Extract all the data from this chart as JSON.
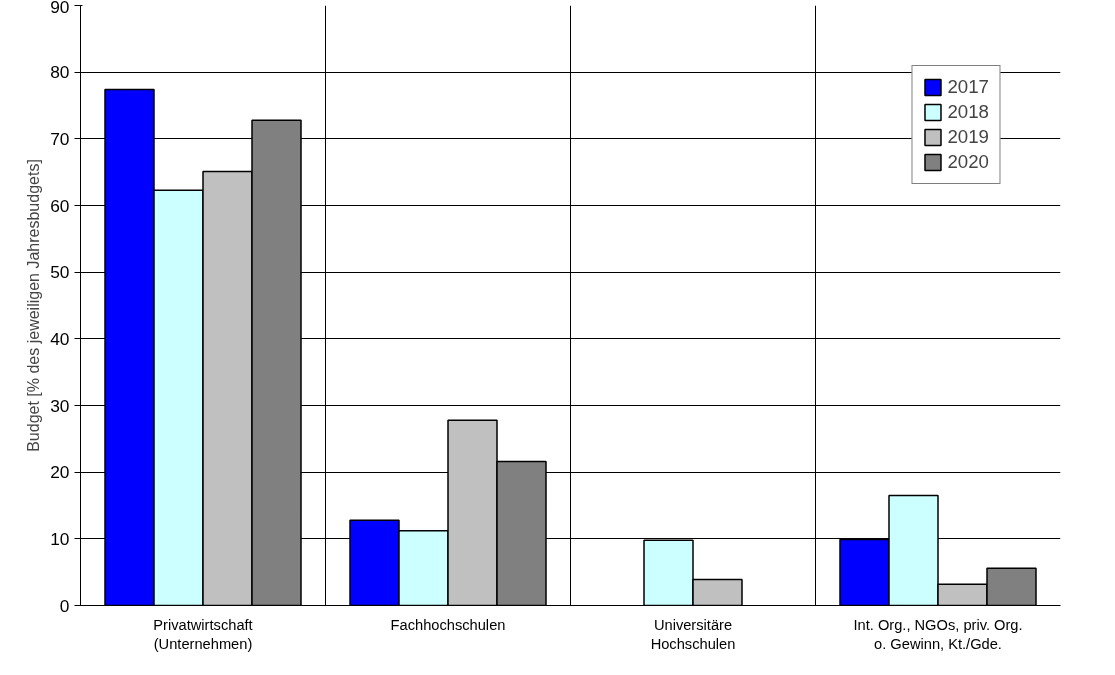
{
  "chart_data": {
    "type": "bar",
    "ylabel": "Budget [% des jeweiligen Jahresbudgets]",
    "categories": [
      "Privatwirtschaft\n(Unternehmen)",
      "Fachhochschulen",
      "Universitäre\nHochschulen",
      "Int. Org., NGOs, priv. Org.\no. Gewinn, Kt./Gde."
    ],
    "series": [
      {
        "name": "2017",
        "color": "#0000ff",
        "values": [
          77.4,
          12.8,
          null,
          9.9
        ]
      },
      {
        "name": "2018",
        "color": "#ccffff",
        "values": [
          62.3,
          11.2,
          9.8,
          16.5
        ]
      },
      {
        "name": "2019",
        "color": "#c0c0c0",
        "values": [
          65.1,
          27.8,
          3.9,
          3.2
        ]
      },
      {
        "name": "2020",
        "color": "#808080",
        "values": [
          72.8,
          21.6,
          null,
          5.6
        ]
      }
    ],
    "ylim": [
      0,
      90
    ],
    "yticks": [
      0,
      10,
      20,
      30,
      40,
      50,
      60,
      70,
      80,
      90
    ],
    "grid": true,
    "legend": "top right"
  }
}
